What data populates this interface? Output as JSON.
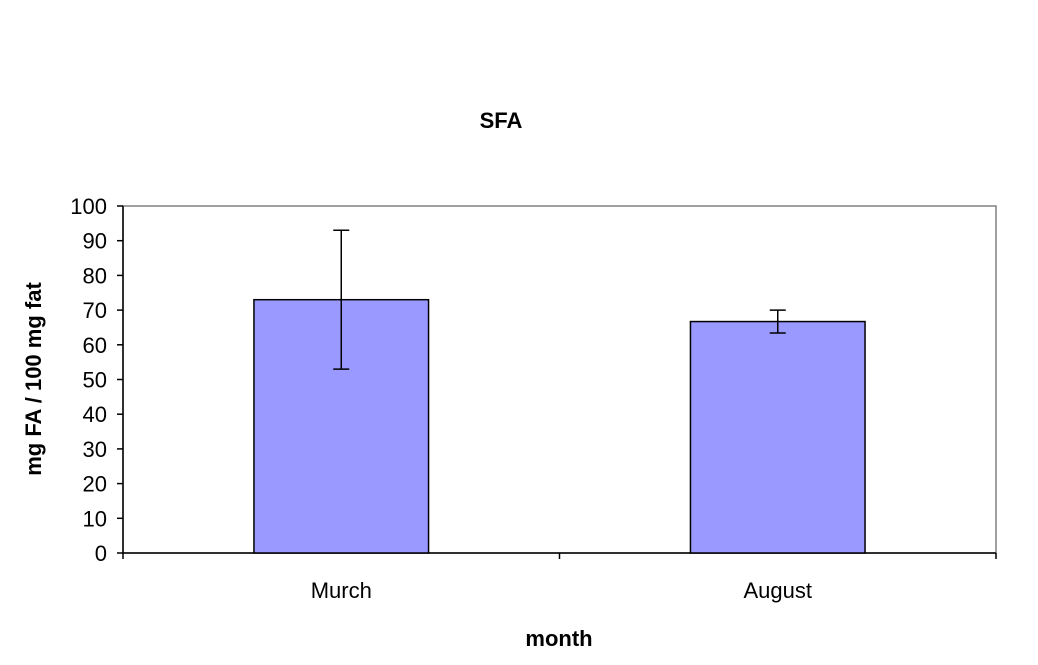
{
  "chart_data": {
    "type": "bar",
    "title": "SFA",
    "xlabel": "month",
    "ylabel": "mg FA / 100 mg fat",
    "categories": [
      "Murch",
      "August"
    ],
    "series": [
      {
        "values": [
          73,
          66.7
        ],
        "error": [
          20,
          3.3
        ],
        "color": "#9999ff"
      }
    ],
    "ylim": [
      0,
      100
    ],
    "yticks": [
      0,
      10,
      20,
      30,
      40,
      50,
      60,
      70,
      80,
      90,
      100
    ],
    "grid": false,
    "legend": "none",
    "colors": {
      "bar_fill": "#9999ff",
      "bar_stroke": "#000000",
      "plot_border": "#808080"
    }
  }
}
